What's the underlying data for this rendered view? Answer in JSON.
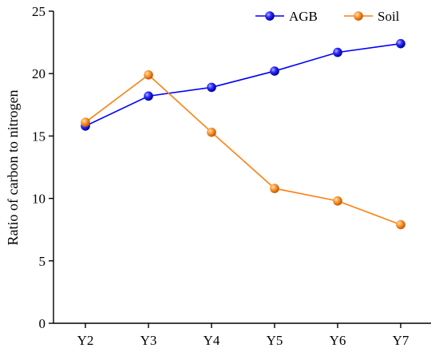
{
  "chart_data": {
    "type": "line",
    "title": "",
    "xlabel": "",
    "ylabel": "Ratio of carbon to nitrogen",
    "categories": [
      "Y2",
      "Y3",
      "Y4",
      "Y5",
      "Y6",
      "Y7"
    ],
    "ylim": [
      0,
      25
    ],
    "yticks": [
      0,
      5,
      10,
      15,
      20,
      25
    ],
    "grid": false,
    "legend_position": "top-right",
    "series": [
      {
        "name": "AGB",
        "color": "#0000ff",
        "values": [
          15.8,
          18.2,
          18.9,
          20.2,
          21.7,
          22.4
        ]
      },
      {
        "name": "Soil",
        "color": "#ff7f0e",
        "values": [
          16.1,
          19.9,
          15.3,
          10.8,
          9.8,
          7.9
        ]
      }
    ]
  }
}
